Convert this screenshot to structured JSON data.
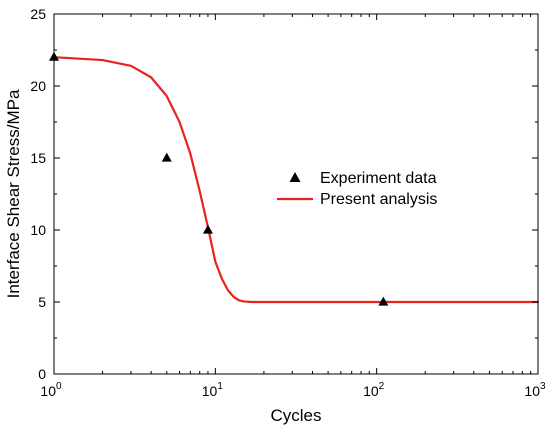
{
  "chart_data": {
    "type": "line",
    "title": "",
    "xlabel": "Cycles",
    "ylabel": "Interface Shear Stress/MPa",
    "x_scale": "log",
    "xlim": [
      1,
      1000
    ],
    "ylim": [
      0,
      25
    ],
    "x_ticks": [
      {
        "base": "10",
        "exp": "0",
        "value": 1
      },
      {
        "base": "10",
        "exp": "1",
        "value": 10
      },
      {
        "base": "10",
        "exp": "2",
        "value": 100
      },
      {
        "base": "10",
        "exp": "3",
        "value": 1000
      }
    ],
    "y_ticks": [
      "0",
      "5",
      "10",
      "15",
      "20",
      "25"
    ],
    "grid": false,
    "legend_position": "center-right",
    "series": [
      {
        "name": "Experiment data",
        "kind": "scatter",
        "marker": "triangle",
        "color": "#000000",
        "x": [
          1,
          5,
          9,
          110
        ],
        "y": [
          22,
          15,
          10,
          5
        ]
      },
      {
        "name": "Present analysis",
        "kind": "line",
        "color": "#e8231b",
        "x": [
          1,
          2,
          3,
          4,
          5,
          6,
          7,
          8,
          9,
          10,
          11,
          12,
          13,
          14,
          15,
          17,
          20,
          30,
          50,
          100,
          200,
          500,
          1000
        ],
        "y": [
          22.0,
          21.8,
          21.4,
          20.6,
          19.3,
          17.5,
          15.3,
          12.7,
          10.2,
          7.8,
          6.6,
          5.8,
          5.35,
          5.12,
          5.04,
          5.0,
          5.0,
          5.0,
          5.0,
          5.0,
          5.0,
          5.0,
          5.0
        ]
      }
    ]
  }
}
